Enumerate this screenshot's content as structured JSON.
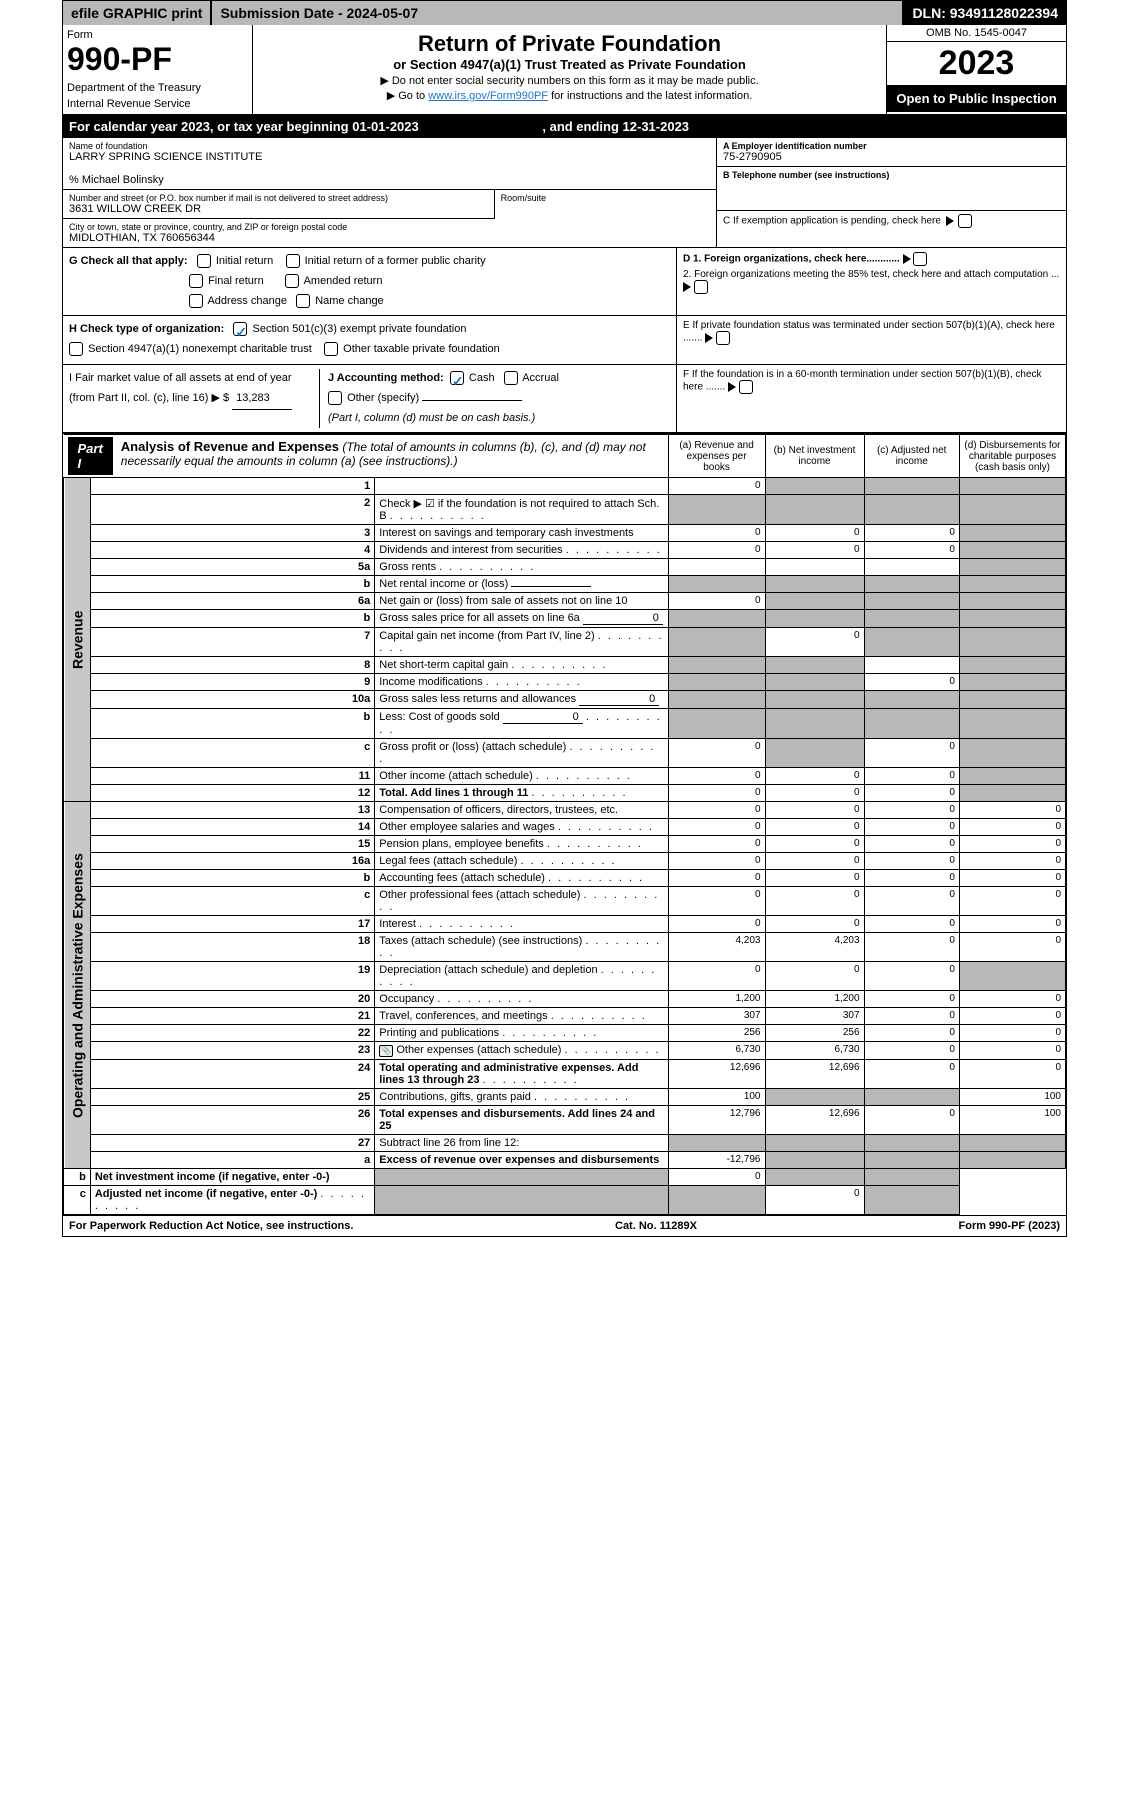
{
  "topbar": {
    "efile": "efile GRAPHIC print",
    "submission": "Submission Date - 2024-05-07",
    "dln": "DLN: 93491128022394"
  },
  "header": {
    "form_label": "Form",
    "form_num": "990-PF",
    "dept1": "Department of the Treasury",
    "dept2": "Internal Revenue Service",
    "title": "Return of Private Foundation",
    "subtitle": "or Section 4947(a)(1) Trust Treated as Private Foundation",
    "note1": "▶ Do not enter social security numbers on this form as it may be made public.",
    "note2_pre": "▶ Go to ",
    "note2_link": "www.irs.gov/Form990PF",
    "note2_post": " for instructions and the latest information.",
    "omb": "OMB No. 1545-0047",
    "year": "2023",
    "open": "Open to Public Inspection"
  },
  "calyear": {
    "text_pre": "For calendar year 2023, or tax year beginning ",
    "begin": "01-01-2023",
    "mid": " , and ending ",
    "end": "12-31-2023"
  },
  "info": {
    "name_lbl": "Name of foundation",
    "name": "LARRY SPRING SCIENCE INSTITUTE",
    "care_of": "% Michael Bolinsky",
    "addr_lbl": "Number and street (or P.O. box number if mail is not delivered to street address)",
    "addr": "3631 WILLOW CREEK DR",
    "room_lbl": "Room/suite",
    "city_lbl": "City or town, state or province, country, and ZIP or foreign postal code",
    "city": "MIDLOTHIAN, TX  760656344",
    "a_lbl": "A Employer identification number",
    "a_val": "75-2790905",
    "b_lbl": "B Telephone number (see instructions)",
    "c_lbl": "C If exemption application is pending, check here",
    "d1_lbl": "D 1. Foreign organizations, check here............",
    "d2_lbl": "2. Foreign organizations meeting the 85% test, check here and attach computation ...",
    "e_lbl": "E  If private foundation status was terminated under section 507(b)(1)(A), check here .......",
    "f_lbl": "F  If the foundation is in a 60-month termination under section 507(b)(1)(B), check here ......."
  },
  "g": {
    "lbl": "G Check all that apply:",
    "opts": [
      "Initial return",
      "Initial return of a former public charity",
      "Final return",
      "Amended return",
      "Address change",
      "Name change"
    ]
  },
  "h": {
    "lbl": "H Check type of organization:",
    "opt1": "Section 501(c)(3) exempt private foundation",
    "opt2": "Section 4947(a)(1) nonexempt charitable trust",
    "opt3": "Other taxable private foundation"
  },
  "i": {
    "lbl": "I Fair market value of all assets at end of year (from Part II, col. (c), line 16)",
    "pre": "▶ $",
    "val": "13,283"
  },
  "j": {
    "lbl": "J Accounting method:",
    "cash": "Cash",
    "accrual": "Accrual",
    "other": "Other (specify)",
    "note": "(Part I, column (d) must be on cash basis.)"
  },
  "part1": {
    "badge": "Part I",
    "title": "Analysis of Revenue and Expenses",
    "title_note": " (The total of amounts in columns (b), (c), and (d) may not necessarily equal the amounts in column (a) (see instructions).)",
    "cols": {
      "a": "(a) Revenue and expenses per books",
      "b": "(b) Net investment income",
      "c": "(c) Adjusted net income",
      "d": "(d) Disbursements for charitable purposes (cash basis only)"
    }
  },
  "side": {
    "rev": "Revenue",
    "exp": "Operating and Administrative Expenses"
  },
  "rows": [
    {
      "n": "1",
      "d": "",
      "a": "0",
      "b": "",
      "c": "",
      "shade": [
        "b",
        "c",
        "d"
      ]
    },
    {
      "n": "2",
      "d": "Check ▶ ☑ if the foundation is not required to attach Sch. B",
      "dots": true,
      "shade": [
        "a",
        "b",
        "c",
        "d"
      ]
    },
    {
      "n": "3",
      "d": "Interest on savings and temporary cash investments",
      "a": "0",
      "b": "0",
      "c": "0",
      "shade": [
        "d"
      ]
    },
    {
      "n": "4",
      "d": "Dividends and interest from securities",
      "dots": true,
      "a": "0",
      "b": "0",
      "c": "0",
      "shade": [
        "d"
      ]
    },
    {
      "n": "5a",
      "d": "Gross rents",
      "dots": true,
      "shade": [
        "d"
      ]
    },
    {
      "n": "b",
      "d": "Net rental income or (loss)",
      "inline": "",
      "shade": [
        "a",
        "b",
        "c",
        "d"
      ]
    },
    {
      "n": "6a",
      "d": "Net gain or (loss) from sale of assets not on line 10",
      "a": "0",
      "shade": [
        "b",
        "c",
        "d"
      ]
    },
    {
      "n": "b",
      "d": "Gross sales price for all assets on line 6a",
      "inline": "0",
      "shade": [
        "a",
        "b",
        "c",
        "d"
      ]
    },
    {
      "n": "7",
      "d": "Capital gain net income (from Part IV, line 2)",
      "dots": true,
      "b": "0",
      "shade": [
        "a",
        "c",
        "d"
      ]
    },
    {
      "n": "8",
      "d": "Net short-term capital gain",
      "dots": true,
      "shade": [
        "a",
        "b",
        "d"
      ]
    },
    {
      "n": "9",
      "d": "Income modifications",
      "dots": true,
      "c": "0",
      "shade": [
        "a",
        "b",
        "d"
      ]
    },
    {
      "n": "10a",
      "d": "Gross sales less returns and allowances",
      "inline": "0",
      "shade": [
        "a",
        "b",
        "c",
        "d"
      ]
    },
    {
      "n": "b",
      "d": "Less: Cost of goods sold",
      "dots": true,
      "inline": "0",
      "shade": [
        "a",
        "b",
        "c",
        "d"
      ]
    },
    {
      "n": "c",
      "d": "Gross profit or (loss) (attach schedule)",
      "dots": true,
      "a": "0",
      "c": "0",
      "shade": [
        "b",
        "d"
      ]
    },
    {
      "n": "11",
      "d": "Other income (attach schedule)",
      "dots": true,
      "a": "0",
      "b": "0",
      "c": "0",
      "shade": [
        "d"
      ]
    },
    {
      "n": "12",
      "d": "Total. Add lines 1 through 11",
      "dots": true,
      "bold": true,
      "a": "0",
      "b": "0",
      "c": "0",
      "shade": [
        "d"
      ]
    },
    {
      "n": "13",
      "d": "Compensation of officers, directors, trustees, etc.",
      "a": "0",
      "b": "0",
      "c": "0",
      "dd": "0"
    },
    {
      "n": "14",
      "d": "Other employee salaries and wages",
      "dots": true,
      "a": "0",
      "b": "0",
      "c": "0",
      "dd": "0"
    },
    {
      "n": "15",
      "d": "Pension plans, employee benefits",
      "dots": true,
      "a": "0",
      "b": "0",
      "c": "0",
      "dd": "0"
    },
    {
      "n": "16a",
      "d": "Legal fees (attach schedule)",
      "dots": true,
      "a": "0",
      "b": "0",
      "c": "0",
      "dd": "0"
    },
    {
      "n": "b",
      "d": "Accounting fees (attach schedule)",
      "dots": true,
      "a": "0",
      "b": "0",
      "c": "0",
      "dd": "0"
    },
    {
      "n": "c",
      "d": "Other professional fees (attach schedule)",
      "dots": true,
      "a": "0",
      "b": "0",
      "c": "0",
      "dd": "0"
    },
    {
      "n": "17",
      "d": "Interest",
      "dots": true,
      "a": "0",
      "b": "0",
      "c": "0",
      "dd": "0"
    },
    {
      "n": "18",
      "d": "Taxes (attach schedule) (see instructions)",
      "dots": true,
      "a": "4,203",
      "b": "4,203",
      "c": "0",
      "dd": "0"
    },
    {
      "n": "19",
      "d": "Depreciation (attach schedule) and depletion",
      "dots": true,
      "a": "0",
      "b": "0",
      "c": "0",
      "shade": [
        "d"
      ]
    },
    {
      "n": "20",
      "d": "Occupancy",
      "dots": true,
      "a": "1,200",
      "b": "1,200",
      "c": "0",
      "dd": "0"
    },
    {
      "n": "21",
      "d": "Travel, conferences, and meetings",
      "dots": true,
      "a": "307",
      "b": "307",
      "c": "0",
      "dd": "0"
    },
    {
      "n": "22",
      "d": "Printing and publications",
      "dots": true,
      "a": "256",
      "b": "256",
      "c": "0",
      "dd": "0"
    },
    {
      "n": "23",
      "d": "Other expenses (attach schedule)",
      "dots": true,
      "icon": true,
      "a": "6,730",
      "b": "6,730",
      "c": "0",
      "dd": "0"
    },
    {
      "n": "24",
      "d": "Total operating and administrative expenses. Add lines 13 through 23",
      "dots": true,
      "bold": true,
      "a": "12,696",
      "b": "12,696",
      "c": "0",
      "dd": "0"
    },
    {
      "n": "25",
      "d": "Contributions, gifts, grants paid",
      "dots": true,
      "a": "100",
      "dd": "100",
      "shade": [
        "b",
        "c"
      ]
    },
    {
      "n": "26",
      "d": "Total expenses and disbursements. Add lines 24 and 25",
      "bold": true,
      "a": "12,796",
      "b": "12,696",
      "c": "0",
      "dd": "100"
    },
    {
      "n": "27",
      "d": "Subtract line 26 from line 12:",
      "shade": [
        "a",
        "b",
        "c",
        "d"
      ]
    },
    {
      "n": "a",
      "d": "Excess of revenue over expenses and disbursements",
      "bold": true,
      "a": "-12,796",
      "shade": [
        "b",
        "c",
        "d"
      ]
    },
    {
      "n": "b",
      "d": "Net investment income (if negative, enter -0-)",
      "bold": true,
      "b": "0",
      "shade": [
        "a",
        "c",
        "d"
      ]
    },
    {
      "n": "c",
      "d": "Adjusted net income (if negative, enter -0-)",
      "dots": true,
      "bold": true,
      "c": "0",
      "shade": [
        "a",
        "b",
        "d"
      ]
    }
  ],
  "footer": {
    "left": "For Paperwork Reduction Act Notice, see instructions.",
    "center": "Cat. No. 11289X",
    "right": "Form 990-PF (2023)"
  }
}
